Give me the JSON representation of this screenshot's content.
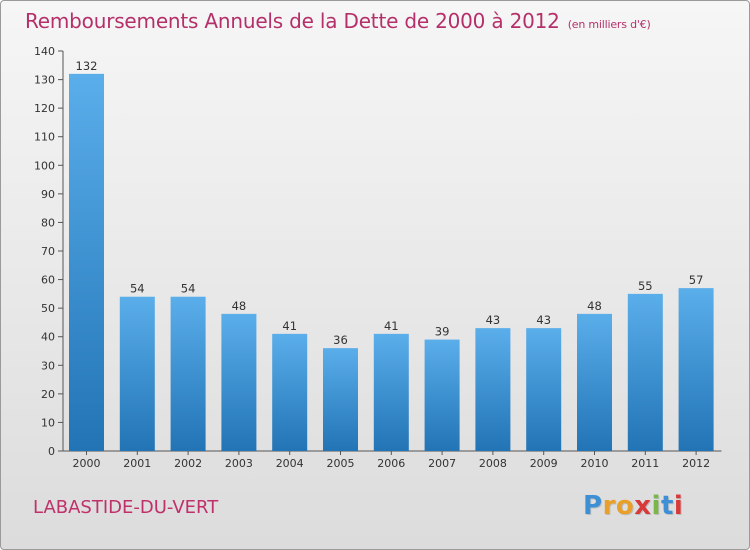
{
  "header": {
    "title": "Remboursements Annuels de la Dette de 2000 à 2012",
    "unit": "(en milliers d'€)"
  },
  "footer": {
    "commune": "LABASTIDE-DU-VERT",
    "logo_text": "Proxiti"
  },
  "colors": {
    "title": "#b5306a",
    "bar_top": "#5aaeea",
    "bar_bottom": "#2274b5",
    "logo_letters": [
      "#3d8fd6",
      "#e8a02a",
      "#e8a02a",
      "#d83a3a",
      "#7ab648",
      "#3d8fd6",
      "#d83a3a"
    ]
  },
  "chart_data": {
    "type": "bar",
    "categories": [
      "2000",
      "2001",
      "2002",
      "2003",
      "2004",
      "2005",
      "2006",
      "2007",
      "2008",
      "2009",
      "2010",
      "2011",
      "2012"
    ],
    "values": [
      132,
      54,
      54,
      48,
      41,
      36,
      41,
      39,
      43,
      43,
      48,
      55,
      57
    ],
    "title": "Remboursements Annuels de la Dette de 2000 à 2012",
    "ylim": [
      0,
      140
    ],
    "yticks": [
      0,
      10,
      20,
      30,
      40,
      50,
      60,
      70,
      80,
      90,
      100,
      110,
      120,
      130,
      140
    ],
    "grid": false,
    "data_labels": true
  }
}
